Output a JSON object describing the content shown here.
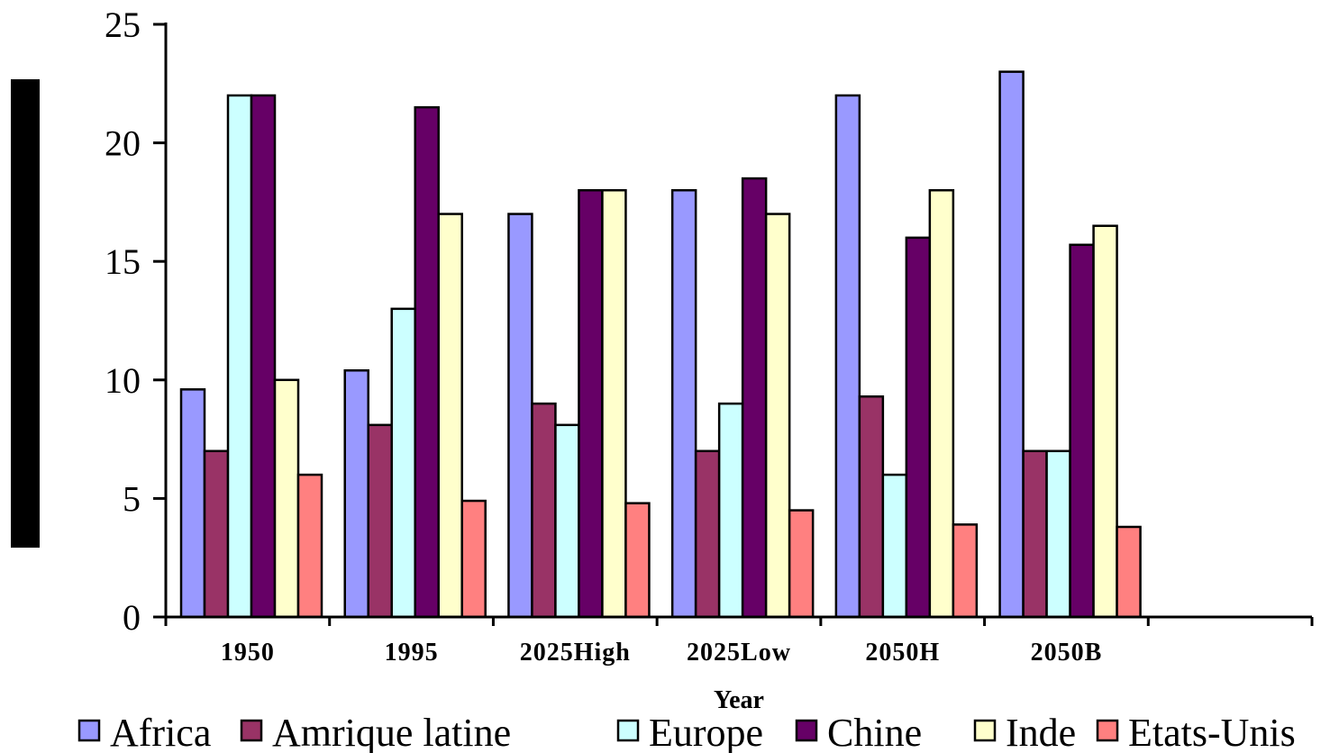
{
  "chart_data": {
    "type": "bar",
    "title": "",
    "xlabel": "Year",
    "ylabel": "",
    "ylim": [
      0,
      25
    ],
    "yticks": [
      0,
      5,
      10,
      15,
      20,
      25
    ],
    "categories": [
      "1950",
      "1995",
      "2025High",
      "2025Low",
      "2050H",
      "2050B"
    ],
    "empty_trailing_slots": 1,
    "legend_position": "bottom",
    "grid": false,
    "series": [
      {
        "name": "Africa",
        "color": "#9999ff",
        "values": [
          9.6,
          10.4,
          17,
          18,
          22,
          23
        ]
      },
      {
        "name": "Amrique latine",
        "color": "#993366",
        "values": [
          7,
          8.1,
          9,
          7,
          9.3,
          7
        ]
      },
      {
        "name": "Europe",
        "color": "#ccffff",
        "values": [
          22,
          13,
          8.1,
          9,
          6,
          7
        ]
      },
      {
        "name": "Chine",
        "color": "#660066",
        "values": [
          22,
          21.5,
          18,
          18.5,
          16,
          15.7
        ]
      },
      {
        "name": "Inde",
        "color": "#ffffcc",
        "values": [
          10,
          17,
          18,
          17,
          18,
          16.5
        ]
      },
      {
        "name": "Etats-Unis",
        "color": "#ff8080",
        "values": [
          6,
          4.9,
          4.8,
          4.5,
          3.9,
          3.8
        ]
      }
    ]
  }
}
